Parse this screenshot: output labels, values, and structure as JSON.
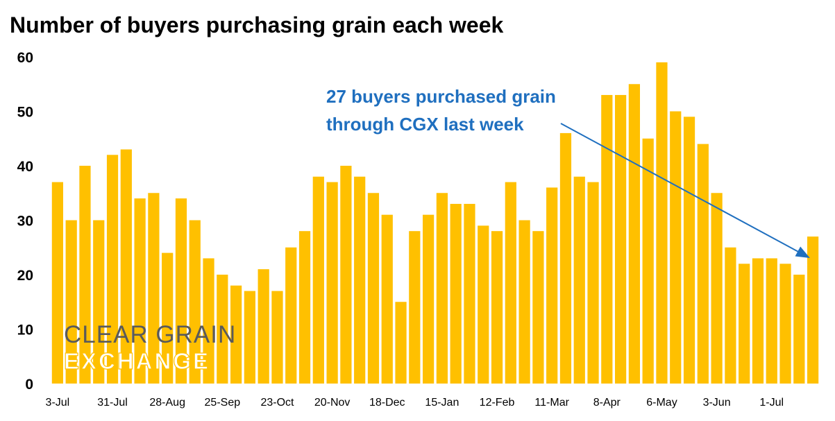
{
  "colors": {
    "bar": "#FFC000",
    "annotation": "#1F6FBF",
    "logo_text": "#5A5A5A",
    "logo_exchange_fill": "#ffffff",
    "logo_exchange_stroke": "#FFC000"
  },
  "logo": {
    "line1": "CLEAR GRAIN",
    "line2": "EXCHANGE"
  },
  "chart_data": {
    "type": "bar",
    "title": "Number of buyers purchasing grain each week",
    "xlabel": "",
    "ylabel": "",
    "ylim": [
      0,
      60
    ],
    "yticks": [
      0,
      10,
      20,
      30,
      40,
      50,
      60
    ],
    "grid": false,
    "xtick_labels": [
      {
        "index": 0,
        "label": "3-Jul"
      },
      {
        "index": 4,
        "label": "31-Jul"
      },
      {
        "index": 8,
        "label": "28-Aug"
      },
      {
        "index": 12,
        "label": "25-Sep"
      },
      {
        "index": 16,
        "label": "23-Oct"
      },
      {
        "index": 20,
        "label": "20-Nov"
      },
      {
        "index": 24,
        "label": "18-Dec"
      },
      {
        "index": 28,
        "label": "15-Jan"
      },
      {
        "index": 32,
        "label": "12-Feb"
      },
      {
        "index": 36,
        "label": "11-Mar"
      },
      {
        "index": 40,
        "label": "8-Apr"
      },
      {
        "index": 44,
        "label": "6-May"
      },
      {
        "index": 48,
        "label": "3-Jun"
      },
      {
        "index": 52,
        "label": "1-Jul"
      }
    ],
    "values": [
      37,
      30,
      40,
      30,
      42,
      43,
      34,
      35,
      24,
      34,
      30,
      23,
      20,
      18,
      17,
      21,
      17,
      25,
      28,
      38,
      37,
      40,
      38,
      35,
      31,
      15,
      28,
      31,
      35,
      33,
      33,
      29,
      28,
      37,
      30,
      28,
      36,
      46,
      38,
      37,
      53,
      53,
      55,
      45,
      59,
      50,
      49,
      44,
      35,
      25,
      22,
      23,
      23,
      22,
      20,
      27
    ],
    "annotation": {
      "lines": [
        "27 buyers purchased grain",
        "through CGX last week"
      ],
      "target_index": 55
    }
  }
}
